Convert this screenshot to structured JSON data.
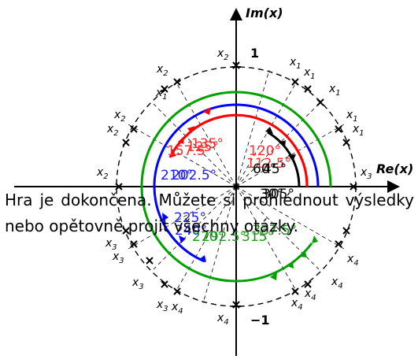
{
  "axes": {
    "re_label": "Re(x)",
    "im_label": "Im(x)",
    "pos_one": "1",
    "neg_one": "−1"
  },
  "root_label_base": "x",
  "root_labels": [
    {
      "sub": "2",
      "color": "#000000"
    },
    {
      "sub": "2",
      "color": "#000000"
    },
    {
      "sub": "1",
      "color": "#000000"
    },
    {
      "sub": "1",
      "color": "#000000"
    },
    {
      "sub": "1",
      "color": "#000000"
    },
    {
      "sub": "1",
      "color": "#000000"
    },
    {
      "sub": "1",
      "color": "#000000"
    },
    {
      "sub": "1",
      "color": "#000000"
    },
    {
      "sub": "2",
      "color": "#000000"
    },
    {
      "sub": "2",
      "color": "#000000"
    },
    {
      "sub": "2",
      "color": "#000000"
    },
    {
      "sub": "3",
      "color": "#000000"
    },
    {
      "sub": "3",
      "color": "#000000"
    },
    {
      "sub": "3",
      "color": "#000000"
    },
    {
      "sub": "3",
      "color": "#000000"
    },
    {
      "sub": "3",
      "color": "#000000"
    },
    {
      "sub": "4",
      "color": "#000000"
    },
    {
      "sub": "4",
      "color": "#000000"
    },
    {
      "sub": "4",
      "color": "#000000"
    },
    {
      "sub": "4",
      "color": "#000000"
    },
    {
      "sub": "4",
      "color": "#000000"
    },
    {
      "sub": "4",
      "color": "#000000"
    }
  ],
  "angle_labels": [
    {
      "text": "125°",
      "color": "#ff2a2a"
    },
    {
      "text": "157.5°",
      "color": "#ff2a2a"
    },
    {
      "text": "135°",
      "color": "#ff2a2a"
    },
    {
      "text": "120°",
      "color": "#ff2a2a"
    },
    {
      "text": "112.5°",
      "color": "#ff2a2a"
    },
    {
      "text": "60°",
      "color": "#000000"
    },
    {
      "text": "45°",
      "color": "#000000"
    },
    {
      "text": "30°",
      "color": "#000000"
    },
    {
      "text": "210°",
      "color": "#1a1aff"
    },
    {
      "text": "202.5°",
      "color": "#1a1aff"
    },
    {
      "text": "225°",
      "color": "#1a1aff"
    },
    {
      "text": "240°",
      "color": "#1a1aff"
    },
    {
      "text": "270°",
      "color": "#1a9a1a"
    },
    {
      "text": "292.5°",
      "color": "#1a9a1a"
    },
    {
      "text": "315°",
      "color": "#1a9a1a"
    },
    {
      "text": "337.5°",
      "color": "#1a9a1a"
    },
    {
      "text": "305°",
      "color": "#000000"
    }
  ],
  "message": "Hra je dokončena. Můžete si prohlédnout výsledky nebo opětovně projít všechny otázky.",
  "colors": {
    "red": "#ff0000",
    "blue": "#0000ff",
    "green": "#00a000",
    "black": "#000000"
  }
}
